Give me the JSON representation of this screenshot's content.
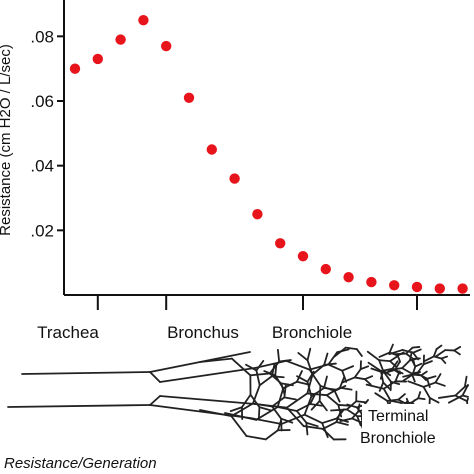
{
  "chart_data": {
    "type": "scatter",
    "ylabel": "Resistance (cm H2O / L/sec)",
    "y_ticks": [
      ".02",
      ".04",
      ".06",
      ".08"
    ],
    "y_tick_values": [
      0.02,
      0.04,
      0.06,
      0.08
    ],
    "ylim": [
      0,
      0.09
    ],
    "xlim": [
      0,
      16.5
    ],
    "x_ticks": [
      1,
      4,
      10,
      15
    ],
    "categories": [
      "Trachea",
      "Bronchus",
      "Bronchiole"
    ],
    "category_positions": [
      1,
      4,
      10
    ],
    "annotation": "Terminal Bronchiole",
    "caption": "Resistance/Generation",
    "point_color": "#e8141c",
    "points": [
      {
        "x": 0,
        "y": 0.07
      },
      {
        "x": 1,
        "y": 0.073
      },
      {
        "x": 2,
        "y": 0.079
      },
      {
        "x": 3,
        "y": 0.085
      },
      {
        "x": 4,
        "y": 0.077
      },
      {
        "x": 5,
        "y": 0.061
      },
      {
        "x": 6,
        "y": 0.045
      },
      {
        "x": 7,
        "y": 0.036
      },
      {
        "x": 8,
        "y": 0.025
      },
      {
        "x": 9,
        "y": 0.016
      },
      {
        "x": 10,
        "y": 0.012
      },
      {
        "x": 11,
        "y": 0.008
      },
      {
        "x": 12,
        "y": 0.0055
      },
      {
        "x": 13,
        "y": 0.004
      },
      {
        "x": 14,
        "y": 0.003
      },
      {
        "x": 15,
        "y": 0.0025
      },
      {
        "x": 16,
        "y": 0.002
      },
      {
        "x": 17,
        "y": 0.002
      }
    ]
  }
}
